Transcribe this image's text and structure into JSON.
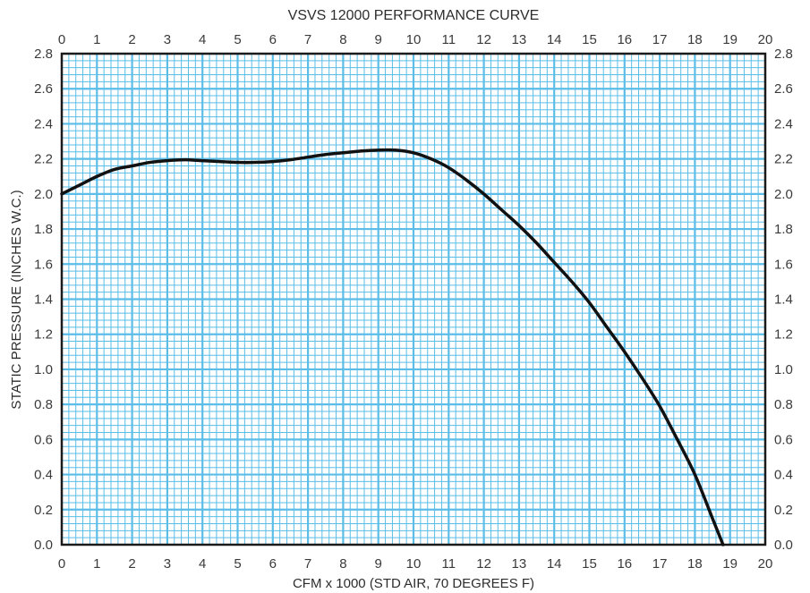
{
  "chart_data": {
    "type": "line",
    "title": "VSVS 12000 PERFORMANCE CURVE",
    "xlabel": "CFM x 1000  (STD AIR, 70 DEGREES F)",
    "ylabel": "STATIC PRESSURE  (INCHES W.C.)",
    "xlim": [
      0,
      20
    ],
    "ylim": [
      0,
      2.8
    ],
    "x_ticks": [
      "0",
      "1",
      "2",
      "3",
      "4",
      "5",
      "6",
      "7",
      "8",
      "9",
      "10",
      "11",
      "12",
      "13",
      "14",
      "15",
      "16",
      "17",
      "18",
      "19",
      "20"
    ],
    "y_ticks": [
      "0.0",
      "0.2",
      "0.4",
      "0.6",
      "0.8",
      "1.0",
      "1.2",
      "1.4",
      "1.6",
      "1.8",
      "2.0",
      "2.2",
      "2.4",
      "2.6",
      "2.8"
    ],
    "grid": true,
    "colors": {
      "grid": "#5bbde8",
      "frame": "#1a1a1a",
      "curve": "#111111"
    },
    "series": [
      {
        "x": [
          0,
          0.5,
          1,
          1.5,
          2,
          2.5,
          3,
          3.5,
          4,
          4.5,
          5,
          5.5,
          6,
          6.5,
          7,
          7.5,
          8,
          8.5,
          9,
          9.5,
          10,
          10.5,
          11,
          11.5,
          12,
          12.5,
          13,
          13.5,
          14,
          14.5,
          15,
          15.5,
          16,
          16.5,
          17,
          17.5,
          18,
          18.5,
          18.8
        ],
        "y": [
          2.0,
          2.05,
          2.1,
          2.14,
          2.16,
          2.18,
          2.19,
          2.195,
          2.19,
          2.185,
          2.18,
          2.18,
          2.185,
          2.195,
          2.21,
          2.225,
          2.235,
          2.245,
          2.25,
          2.25,
          2.235,
          2.2,
          2.15,
          2.08,
          2.0,
          1.91,
          1.82,
          1.72,
          1.61,
          1.5,
          1.38,
          1.24,
          1.1,
          0.95,
          0.79,
          0.6,
          0.4,
          0.15,
          0.0
        ]
      }
    ]
  }
}
